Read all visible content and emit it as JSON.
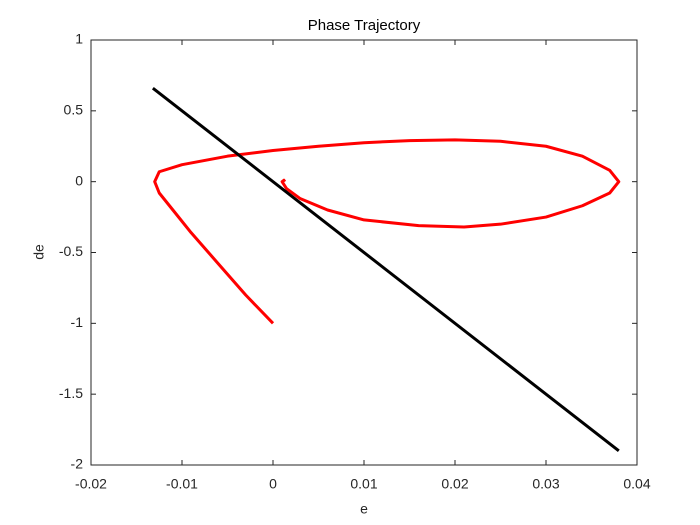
{
  "chart_data": {
    "type": "line",
    "title": "Phase Trajectory",
    "x_label": "e",
    "y_label": "de",
    "xlim": [
      -0.02,
      0.04
    ],
    "ylim": [
      -2,
      1
    ],
    "xticks": [
      -0.02,
      -0.01,
      0,
      0.01,
      0.02,
      0.03,
      0.04
    ],
    "yticks": [
      -2,
      -1.5,
      -1,
      -0.5,
      0,
      0.5,
      1
    ],
    "grid": false,
    "series": [
      {
        "color": "#ff0000",
        "x": [
          0,
          -0.003,
          -0.006,
          -0.009,
          -0.011,
          -0.0125,
          -0.013,
          -0.0125,
          -0.01,
          -0.005,
          0,
          0.005,
          0.01,
          0.015,
          0.02,
          0.025,
          0.03,
          0.034,
          0.037,
          0.038,
          0.037,
          0.034,
          0.03,
          0.025,
          0.021,
          0.016,
          0.01,
          0.006,
          0.003,
          0.0015,
          0.001,
          0.0012,
          0.0013
        ],
        "values": [
          -1,
          -0.8,
          -0.58,
          -0.36,
          -0.2,
          -0.08,
          0,
          0.07,
          0.12,
          0.18,
          0.22,
          0.25,
          0.275,
          0.29,
          0.295,
          0.285,
          0.25,
          0.18,
          0.08,
          0,
          -0.08,
          -0.17,
          -0.25,
          -0.3,
          -0.32,
          -0.31,
          -0.27,
          -0.2,
          -0.12,
          -0.05,
          0,
          0.01,
          0
        ]
      },
      {
        "color": "#000000",
        "x": [
          -0.0132,
          0.038
        ],
        "values": [
          0.66,
          -1.9
        ]
      }
    ]
  }
}
